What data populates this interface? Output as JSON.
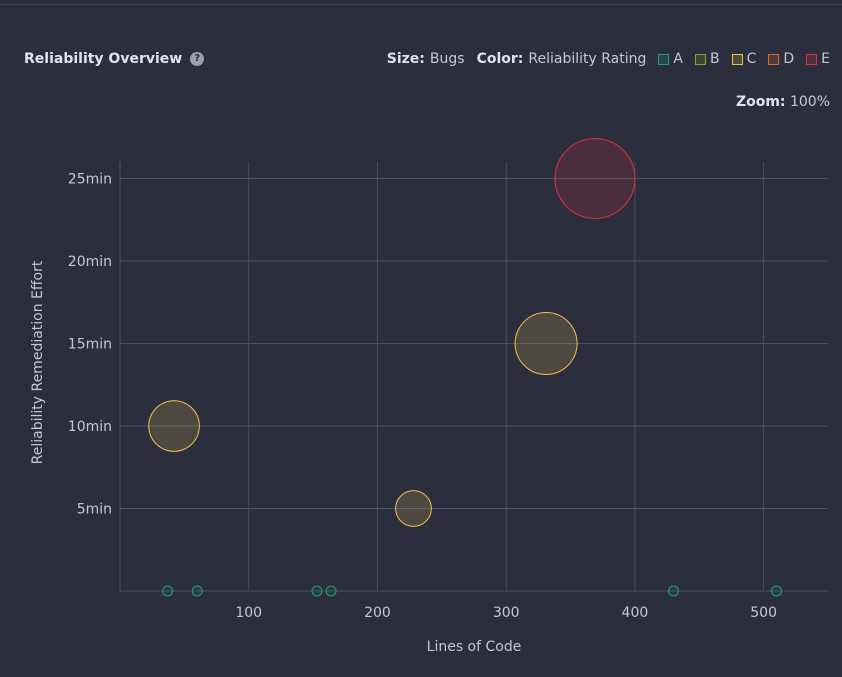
{
  "header": {
    "title": "Reliability Overview",
    "help_icon": "?",
    "size_label": "Size:",
    "size_value": "Bugs",
    "color_label": "Color:",
    "color_value": "Reliability Rating"
  },
  "legend": [
    {
      "label": "A",
      "color": "#1fa36e"
    },
    {
      "label": "B",
      "color": "#7fa82a"
    },
    {
      "label": "C",
      "color": "#f0c14b"
    },
    {
      "label": "D",
      "color": "#d96b2b"
    },
    {
      "label": "E",
      "color": "#e0333f"
    }
  ],
  "zoom": {
    "label": "Zoom:",
    "value": "100%"
  },
  "chart_data": {
    "type": "scatter",
    "xlabel": "Lines of Code",
    "ylabel": "Reliability Remediation Effort",
    "xlim": [
      0,
      550
    ],
    "ylim": [
      0,
      26
    ],
    "x_ticks": [
      100,
      200,
      300,
      400,
      500
    ],
    "y_ticks": [
      5,
      10,
      15,
      20,
      25
    ],
    "y_tick_labels": [
      "5min",
      "10min",
      "15min",
      "20min",
      "25min"
    ],
    "grid": true,
    "points": [
      {
        "x": 37,
        "y": 0,
        "bugs": 0,
        "rating": "A"
      },
      {
        "x": 60,
        "y": 0,
        "bugs": 0,
        "rating": "A"
      },
      {
        "x": 153,
        "y": 0,
        "bugs": 0,
        "rating": "A"
      },
      {
        "x": 164,
        "y": 0,
        "bugs": 0,
        "rating": "A"
      },
      {
        "x": 430,
        "y": 0,
        "bugs": 0,
        "rating": "A"
      },
      {
        "x": 510,
        "y": 0,
        "bugs": 0,
        "rating": "A"
      },
      {
        "x": 228,
        "y": 5,
        "bugs": 1,
        "rating": "C"
      },
      {
        "x": 42,
        "y": 10,
        "bugs": 2,
        "rating": "C"
      },
      {
        "x": 331,
        "y": 15,
        "bugs": 3,
        "rating": "C"
      },
      {
        "x": 369,
        "y": 25,
        "bugs": 5,
        "rating": "E"
      }
    ]
  }
}
